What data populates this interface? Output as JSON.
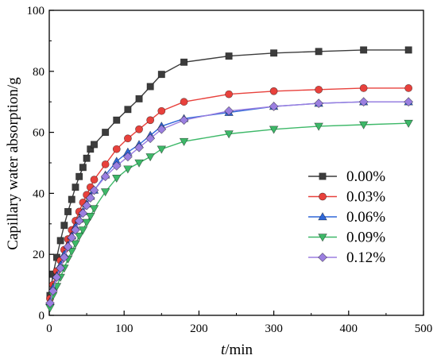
{
  "chart_data": {
    "type": "line",
    "xlabel_italic": "t",
    "xlabel_rest": "/min",
    "ylabel": "Capillary water absorption/g",
    "xlim": [
      0,
      500
    ],
    "ylim": [
      0,
      100
    ],
    "xticks": [
      0,
      100,
      200,
      300,
      400,
      500
    ],
    "yticks": [
      0,
      20,
      40,
      60,
      80,
      100
    ],
    "grid": false,
    "legend_position": "center-right",
    "series": [
      {
        "name": "0.00%",
        "color": "#3c3c3c",
        "marker": "square",
        "x": [
          1,
          5,
          10,
          15,
          20,
          25,
          30,
          35,
          40,
          45,
          50,
          55,
          60,
          75,
          90,
          105,
          120,
          135,
          150,
          180,
          240,
          300,
          360,
          420,
          480
        ],
        "y": [
          6.5,
          13.5,
          19,
          24.5,
          29.5,
          34,
          38,
          42,
          45.5,
          48.5,
          51.5,
          54.5,
          56,
          60,
          64,
          67.5,
          71,
          75,
          79,
          83,
          85,
          86,
          86.5,
          87,
          87
        ]
      },
      {
        "name": "0.03%",
        "color": "#e8413c",
        "marker": "circle",
        "x": [
          1,
          5,
          10,
          15,
          20,
          25,
          30,
          35,
          40,
          45,
          50,
          55,
          60,
          75,
          90,
          105,
          120,
          135,
          150,
          180,
          240,
          300,
          360,
          420,
          480
        ],
        "y": [
          5.5,
          10,
          14.5,
          18,
          21.5,
          25,
          28,
          31,
          34,
          37,
          39.5,
          42,
          44.5,
          49.5,
          54.5,
          58,
          61,
          64,
          67,
          70,
          72.5,
          73.5,
          74,
          74.5,
          74.5
        ]
      },
      {
        "name": "0.06%",
        "color": "#2f67d8",
        "marker": "triangle-up",
        "x": [
          1,
          5,
          10,
          15,
          20,
          25,
          30,
          35,
          40,
          45,
          50,
          55,
          60,
          75,
          90,
          105,
          120,
          135,
          150,
          180,
          240,
          300,
          360,
          420,
          480
        ],
        "y": [
          4.5,
          9,
          13,
          16.5,
          20,
          23,
          26,
          29,
          31.5,
          34,
          36.5,
          39,
          41,
          46,
          50.5,
          53.5,
          56,
          59,
          62,
          64.5,
          66.5,
          68.5,
          69.5,
          70,
          70
        ]
      },
      {
        "name": "0.09%",
        "color": "#3db868",
        "marker": "triangle-down",
        "x": [
          1,
          5,
          10,
          15,
          20,
          25,
          30,
          35,
          40,
          45,
          50,
          55,
          60,
          75,
          90,
          105,
          120,
          135,
          150,
          180,
          240,
          300,
          360,
          420,
          480
        ],
        "y": [
          2.5,
          6.5,
          9.5,
          12.5,
          15.5,
          18.5,
          21,
          23.5,
          26,
          28,
          30.5,
          32.5,
          35,
          40.5,
          45,
          48,
          50,
          52,
          54.5,
          57,
          59.5,
          61,
          62,
          62.5,
          63
        ]
      },
      {
        "name": "0.12%",
        "color": "#9b7fe0",
        "marker": "diamond",
        "x": [
          1,
          5,
          10,
          15,
          20,
          25,
          30,
          35,
          40,
          45,
          50,
          55,
          60,
          75,
          90,
          105,
          120,
          135,
          150,
          180,
          240,
          300,
          360,
          420,
          480
        ],
        "y": [
          4,
          8,
          12.5,
          15.5,
          19,
          22.5,
          25.5,
          28,
          31,
          33.5,
          36,
          38.5,
          41,
          45.5,
          49,
          52,
          55,
          58,
          61,
          64,
          67,
          68.5,
          69.5,
          70,
          70
        ]
      }
    ]
  }
}
